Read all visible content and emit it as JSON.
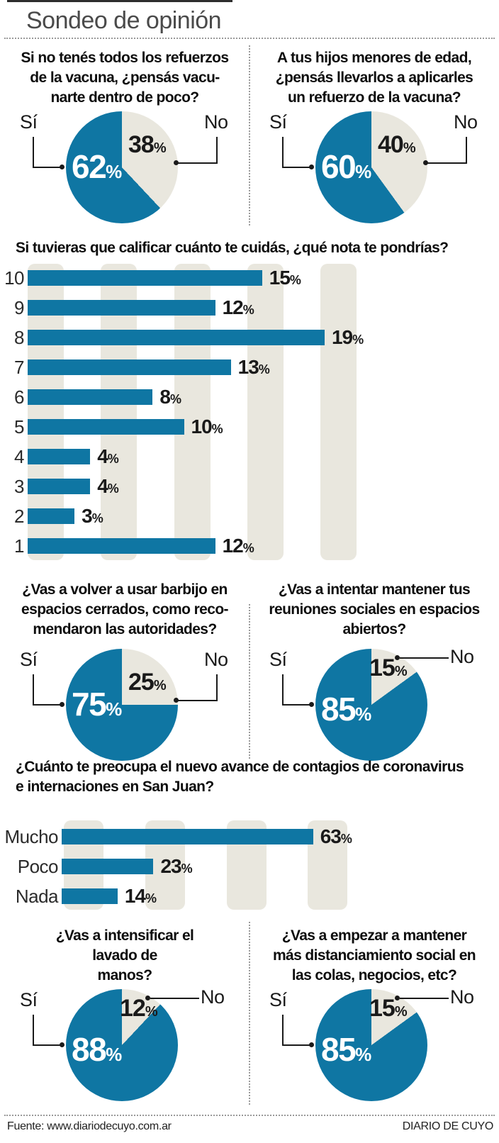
{
  "page_title": "Sondeo de opinión",
  "symbols": {
    "percent": "%"
  },
  "colors": {
    "blue": "#0f76a3",
    "beige": "#e9e7de"
  },
  "footer": {
    "source": "Fuente: www.diariodecuyo.com.ar",
    "credit": "DIARIO DE CUYO"
  },
  "chart_data": [
    {
      "type": "pie",
      "title": "Si no tenés todos los refuerzos de la vacuna, ¿pensás vacunarte dentro de poco?",
      "question_lines": [
        "Si no tenés todos los refuerzos",
        "de la vacuna, ¿pensás vacu-",
        "narte dentro de poco?"
      ],
      "labels": [
        "Sí",
        "No"
      ],
      "values": [
        62,
        38
      ],
      "colors": [
        "#0f76a3",
        "#e9e7de"
      ]
    },
    {
      "type": "pie",
      "title": "A tus hijos menores de edad, ¿pensás llevarlos a aplicarles un refuerzo de la vacuna?",
      "question_lines": [
        "A tus hijos menores de edad,",
        "¿pensás llevarlos a aplicarles",
        "un refuerzo de la vacuna?"
      ],
      "labels": [
        "Sí",
        "No"
      ],
      "values": [
        60,
        40
      ],
      "colors": [
        "#0f76a3",
        "#e9e7de"
      ]
    },
    {
      "type": "pie",
      "title": "¿Vas a volver a usar barbijo en espacios cerrados, como recomendaron las autoridades?",
      "question_lines": [
        "¿Vas a volver a usar barbijo en",
        "espacios cerrados, como reco-",
        "mendaron las autoridades?"
      ],
      "labels": [
        "Sí",
        "No"
      ],
      "values": [
        75,
        25
      ],
      "colors": [
        "#0f76a3",
        "#e9e7de"
      ]
    },
    {
      "type": "pie",
      "title": "¿Vas a intentar mantener tus reuniones sociales en espacios abiertos?",
      "question_lines": [
        "¿Vas a intentar mantener tus",
        "reuniones sociales en espacios",
        "abiertos?"
      ],
      "labels": [
        "Sí",
        "No"
      ],
      "values": [
        85,
        15
      ],
      "colors": [
        "#0f76a3",
        "#e9e7de"
      ]
    },
    {
      "type": "pie",
      "title": "¿Vas a intensificar el lavado de manos?",
      "question_lines": [
        "¿Vas a intensificar el",
        "lavado de",
        "manos?"
      ],
      "labels": [
        "Sí",
        "No"
      ],
      "values": [
        88,
        12
      ],
      "colors": [
        "#0f76a3",
        "#e9e7de"
      ]
    },
    {
      "type": "pie",
      "title": "¿Vas a empezar a mantener más distanciamiento social en las colas, negocios, etc?",
      "question_lines": [
        "¿Vas a empezar a mantener",
        "más distanciamiento social en",
        "las colas, negocios, etc?"
      ],
      "labels": [
        "Sí",
        "No"
      ],
      "values": [
        85,
        15
      ],
      "colors": [
        "#0f76a3",
        "#e9e7de"
      ]
    },
    {
      "type": "bar",
      "orientation": "horizontal",
      "title": "Si tuvieras que calificar cuánto te cuidás, ¿qué nota te pondrías?",
      "title_lines": [
        "Si tuvieras que calificar cuánto te cuidás, ¿qué nota te pondrías?"
      ],
      "categories": [
        "10",
        "9",
        "8",
        "7",
        "6",
        "5",
        "4",
        "3",
        "2",
        "1"
      ],
      "values": [
        15,
        12,
        19,
        13,
        8,
        10,
        4,
        4,
        3,
        12
      ],
      "unit": "%",
      "xlim": [
        0,
        20
      ],
      "grid": "decorative-bands",
      "bar_color": "#0f76a3"
    },
    {
      "type": "bar",
      "orientation": "horizontal",
      "title": "¿Cuánto te preocupa el nuevo avance de contagios de coronavirus e internaciones en San Juan?",
      "title_lines": [
        "¿Cuánto te preocupa el nuevo avance de contagios de coronavirus",
        "e internaciones en San Juan?"
      ],
      "categories": [
        "Mucho",
        "Poco",
        "Nada"
      ],
      "values": [
        63,
        23,
        14
      ],
      "unit": "%",
      "xlim": [
        0,
        70
      ],
      "grid": "decorative-bands",
      "bar_color": "#0f76a3"
    }
  ]
}
